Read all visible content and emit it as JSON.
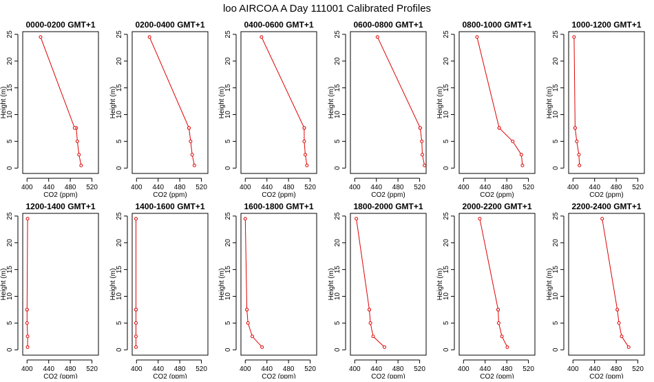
{
  "figure": {
    "title": "loo AIRCOA A  Day 111001  Calibrated Profiles"
  },
  "colors": {
    "series": "#dd0000",
    "axis": "#000000",
    "background": "#ffffff"
  },
  "chart_data": [
    {
      "type": "line",
      "title": "0000-0200 GMT+1",
      "xlabel": "CO2 (ppm)",
      "ylabel": "Height (m)",
      "xlim": [
        392,
        532
      ],
      "ylim": [
        -1,
        25.5
      ],
      "xticks": [
        400,
        440,
        480,
        520
      ],
      "yticks": [
        0,
        5,
        10,
        15,
        20,
        25
      ],
      "grid": false,
      "series": [
        {
          "x": [
            500,
            496,
            493,
            491,
            488,
            425
          ],
          "y": [
            0.5,
            2.5,
            5,
            7.5,
            7.5,
            24.5
          ]
        }
      ]
    },
    {
      "type": "line",
      "title": "0200-0400 GMT+1",
      "xlabel": "CO2 (ppm)",
      "ylabel": "Height (m)",
      "xlim": [
        392,
        532
      ],
      "ylim": [
        -1,
        25.5
      ],
      "xticks": [
        400,
        440,
        480,
        520
      ],
      "yticks": [
        0,
        5,
        10,
        15,
        20,
        25
      ],
      "grid": false,
      "series": [
        {
          "x": [
            507,
            503,
            500,
            497,
            497,
            424
          ],
          "y": [
            0.5,
            2.5,
            5,
            7.5,
            7.5,
            24.5
          ]
        }
      ]
    },
    {
      "type": "line",
      "title": "0400-0600 GMT+1",
      "xlabel": "CO2 (ppm)",
      "ylabel": "Height (m)",
      "xlim": [
        392,
        532
      ],
      "ylim": [
        -1,
        25.5
      ],
      "xticks": [
        400,
        440,
        480,
        520
      ],
      "yticks": [
        0,
        5,
        10,
        15,
        20,
        25
      ],
      "grid": false,
      "series": [
        {
          "x": [
            514,
            511,
            509,
            509,
            509,
            430
          ],
          "y": [
            0.5,
            2.5,
            5,
            7.5,
            7.5,
            24.5
          ]
        }
      ]
    },
    {
      "type": "line",
      "title": "0600-0800 GMT+1",
      "xlabel": "CO2 (ppm)",
      "ylabel": "Height (m)",
      "xlim": [
        392,
        532
      ],
      "ylim": [
        -1,
        25.5
      ],
      "xticks": [
        400,
        440,
        480,
        520
      ],
      "yticks": [
        0,
        5,
        10,
        15,
        20,
        25
      ],
      "grid": false,
      "series": [
        {
          "x": [
            529,
            525,
            524,
            521,
            521,
            442
          ],
          "y": [
            0.5,
            2.5,
            5,
            7.5,
            7.5,
            24.5
          ]
        }
      ]
    },
    {
      "type": "line",
      "title": "0800-1000 GMT+1",
      "xlabel": "CO2 (ppm)",
      "ylabel": "Height (m)",
      "xlim": [
        392,
        532
      ],
      "ylim": [
        -1,
        25.5
      ],
      "xticks": [
        400,
        440,
        480,
        520
      ],
      "yticks": [
        0,
        5,
        10,
        15,
        20,
        25
      ],
      "grid": false,
      "series": [
        {
          "x": [
            509,
            507,
            491,
            466,
            466,
            425
          ],
          "y": [
            0.5,
            2.5,
            5,
            7.5,
            7.5,
            24.5
          ]
        }
      ]
    },
    {
      "type": "line",
      "title": "1000-1200 GMT+1",
      "xlabel": "CO2 (ppm)",
      "ylabel": "Height (m)",
      "xlim": [
        392,
        532
      ],
      "ylim": [
        -1,
        25.5
      ],
      "xticks": [
        400,
        440,
        480,
        520
      ],
      "yticks": [
        0,
        5,
        10,
        15,
        20,
        25
      ],
      "grid": false,
      "series": [
        {
          "x": [
            412,
            411,
            407,
            404,
            404,
            402
          ],
          "y": [
            0.5,
            2.5,
            5,
            7.5,
            7.5,
            24.5
          ]
        }
      ]
    },
    {
      "type": "line",
      "title": "1200-1400 GMT+1",
      "xlabel": "CO2 (ppm)",
      "ylabel": "Height (m)",
      "xlim": [
        392,
        532
      ],
      "ylim": [
        -1,
        25.5
      ],
      "xticks": [
        400,
        440,
        480,
        520
      ],
      "yticks": [
        0,
        5,
        10,
        15,
        20,
        25
      ],
      "grid": false,
      "series": [
        {
          "x": [
            401,
            401,
            400,
            400,
            400,
            401
          ],
          "y": [
            0.5,
            2.5,
            5,
            7.5,
            7.5,
            24.5
          ]
        }
      ]
    },
    {
      "type": "line",
      "title": "1400-1600 GMT+1",
      "xlabel": "CO2 (ppm)",
      "ylabel": "Height (m)",
      "xlim": [
        392,
        532
      ],
      "ylim": [
        -1,
        25.5
      ],
      "xticks": [
        400,
        440,
        480,
        520
      ],
      "yticks": [
        0,
        5,
        10,
        15,
        20,
        25
      ],
      "grid": false,
      "series": [
        {
          "x": [
            399,
            399,
            399,
            399,
            399,
            399
          ],
          "y": [
            0.5,
            2.5,
            5,
            7.5,
            7.5,
            24.5
          ]
        }
      ]
    },
    {
      "type": "line",
      "title": "1600-1800 GMT+1",
      "xlabel": "CO2 (ppm)",
      "ylabel": "Height (m)",
      "xlim": [
        392,
        532
      ],
      "ylim": [
        -1,
        25.5
      ],
      "xticks": [
        400,
        440,
        480,
        520
      ],
      "yticks": [
        0,
        5,
        10,
        15,
        20,
        25
      ],
      "grid": false,
      "series": [
        {
          "x": [
            431,
            413,
            405,
            403,
            403,
            400
          ],
          "y": [
            0.5,
            2.5,
            5,
            7.5,
            7.5,
            24.5
          ]
        }
      ]
    },
    {
      "type": "line",
      "title": "1800-2000 GMT+1",
      "xlabel": "CO2 (ppm)",
      "ylabel": "Height (m)",
      "xlim": [
        392,
        532
      ],
      "ylim": [
        -1,
        25.5
      ],
      "xticks": [
        400,
        440,
        480,
        520
      ],
      "yticks": [
        0,
        5,
        10,
        15,
        20,
        25
      ],
      "grid": false,
      "series": [
        {
          "x": [
            455,
            434,
            429,
            427,
            427,
            403
          ],
          "y": [
            0.5,
            2.5,
            5,
            7.5,
            7.5,
            24.5
          ]
        }
      ]
    },
    {
      "type": "line",
      "title": "2000-2200 GMT+1",
      "xlabel": "CO2 (ppm)",
      "ylabel": "Height (m)",
      "xlim": [
        392,
        532
      ],
      "ylim": [
        -1,
        25.5
      ],
      "xticks": [
        400,
        440,
        480,
        520
      ],
      "yticks": [
        0,
        5,
        10,
        15,
        20,
        25
      ],
      "grid": false,
      "series": [
        {
          "x": [
            481,
            471,
            465,
            464,
            464,
            430
          ],
          "y": [
            0.5,
            2.5,
            5,
            7.5,
            7.5,
            24.5
          ]
        }
      ]
    },
    {
      "type": "line",
      "title": "2200-2400 GMT+1",
      "xlabel": "CO2 (ppm)",
      "ylabel": "Height (m)",
      "xlim": [
        392,
        532
      ],
      "ylim": [
        -1,
        25.5
      ],
      "xticks": [
        400,
        440,
        480,
        520
      ],
      "yticks": [
        0,
        5,
        10,
        15,
        20,
        25
      ],
      "grid": false,
      "series": [
        {
          "x": [
            503,
            490,
            485,
            482,
            482,
            454
          ],
          "y": [
            0.5,
            2.5,
            5,
            7.5,
            7.5,
            24.5
          ]
        }
      ]
    }
  ]
}
